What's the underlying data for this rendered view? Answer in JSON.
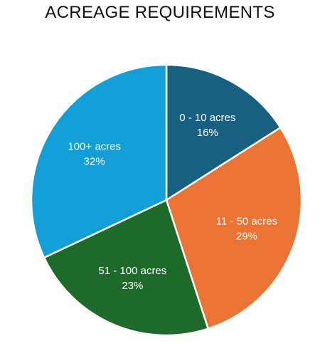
{
  "chart_data": {
    "type": "pie",
    "title": "ACREAGE REQUIREMENTS",
    "slices": [
      {
        "label": "0 - 10 acres",
        "value": 16,
        "display": "16%",
        "color": "#17607F"
      },
      {
        "label": "11 - 50 acres",
        "value": 29,
        "display": "29%",
        "color": "#EB7434"
      },
      {
        "label": "51 - 100 acres",
        "value": 23,
        "display": "23%",
        "color": "#1D6A2A"
      },
      {
        "label": "100+ acres",
        "value": 32,
        "display": "32%",
        "color": "#129ED6"
      }
    ],
    "start": "12 o'clock",
    "direction": "clockwise",
    "legend": "none"
  }
}
